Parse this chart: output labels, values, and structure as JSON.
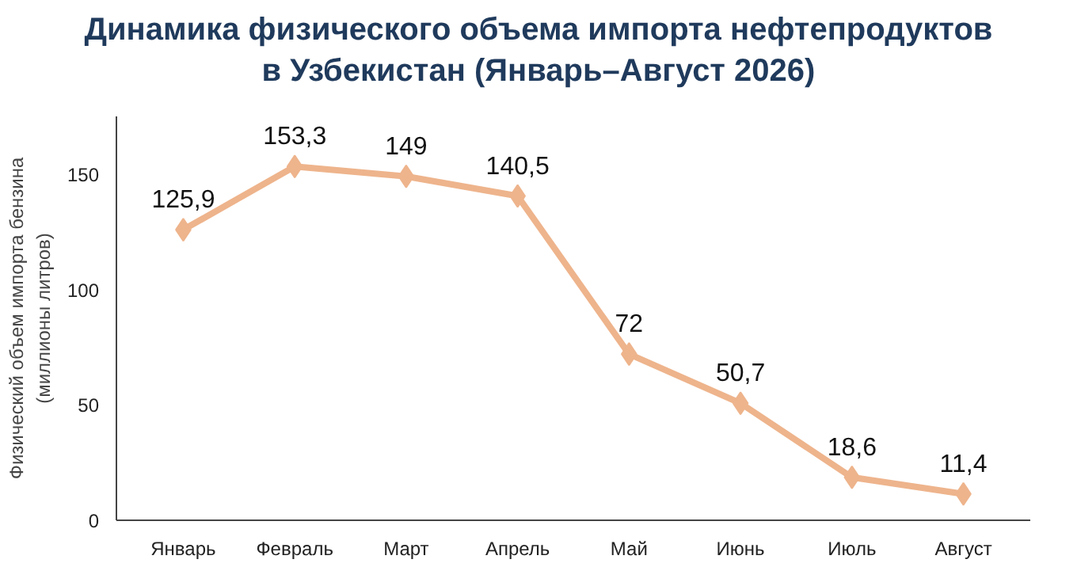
{
  "chart_data": {
    "type": "line",
    "title": "Динамика физического объема импорта нефтепродуктов\nв Узбекистан (Январь–Август 2026)",
    "ylabel": "Физический объем импорта бензина\n(миллионы литров)",
    "categories": [
      "Январь",
      "Февраль",
      "Март",
      "Апрель",
      "Май",
      "Июнь",
      "Июль",
      "Август"
    ],
    "series": [
      {
        "color": "#eeb48c",
        "values": [
          125.9,
          153.3,
          149,
          140.5,
          72,
          50.7,
          18.6,
          11.4
        ],
        "value_labels": [
          "125,9",
          "153,3",
          "149",
          "140,5",
          "72",
          "50,7",
          "18,6",
          "11,4"
        ]
      }
    ],
    "ylim": [
      0,
      175
    ],
    "yticks": [
      0,
      50,
      100,
      150
    ],
    "marker": "diamond",
    "line_style": "solid",
    "grid": false
  }
}
